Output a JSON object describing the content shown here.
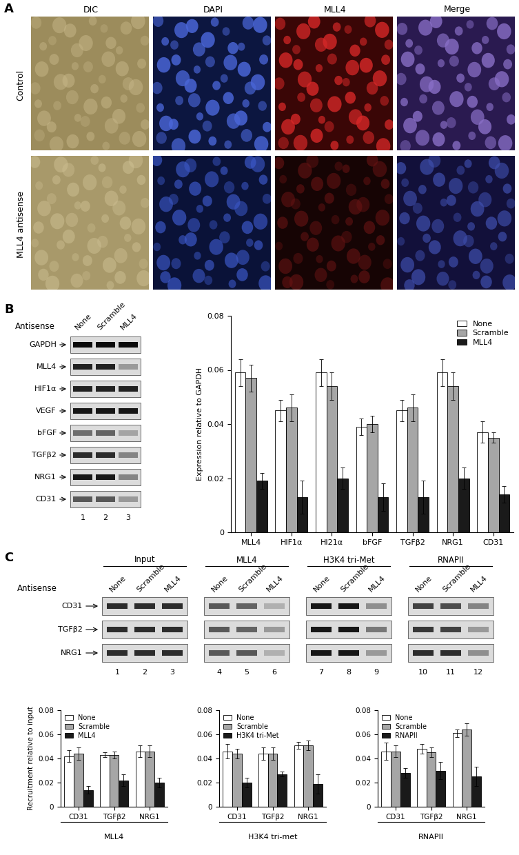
{
  "panel_labels": [
    "A",
    "B",
    "C"
  ],
  "micrographs": {
    "columns": [
      "DIC",
      "DAPI",
      "MLL4",
      "Merge"
    ],
    "rows": [
      "Control",
      "MLL4 antisense"
    ]
  },
  "gels": [
    {
      "header": "Antisense",
      "lanes": [
        "None",
        "Scramble",
        "MLL4"
      ],
      "lane_numbers": [
        1,
        2,
        3
      ],
      "rows": [
        {
          "name": "GAPDH",
          "intensity": [
            0.95,
            0.95,
            0.95
          ]
        },
        {
          "name": "MLL4",
          "intensity": [
            0.85,
            0.85,
            0.3
          ]
        },
        {
          "name": "HIF1α",
          "intensity": [
            0.85,
            0.85,
            0.85
          ]
        },
        {
          "name": "VEGF",
          "intensity": [
            0.9,
            0.9,
            0.9
          ]
        },
        {
          "name": "bFGF",
          "intensity": [
            0.5,
            0.55,
            0.25
          ]
        },
        {
          "name": "TGFβ2",
          "intensity": [
            0.8,
            0.8,
            0.4
          ]
        },
        {
          "name": "NRG1",
          "intensity": [
            0.9,
            0.9,
            0.4
          ]
        },
        {
          "name": "CD31",
          "intensity": [
            0.6,
            0.6,
            0.3
          ]
        }
      ]
    },
    {
      "header": "Antisense",
      "groups": [
        {
          "name": "Input",
          "lanes": [
            "None",
            "Scramble",
            "MLL4"
          ]
        },
        {
          "name": "MLL4",
          "lanes": [
            "None",
            "Scramble",
            "MLL4"
          ]
        },
        {
          "name": "H3K4 tri-Met",
          "lanes": [
            "None",
            "Scramble",
            "MLL4"
          ]
        },
        {
          "name": "RNAPII",
          "lanes": [
            "None",
            "Scramble",
            "MLL4"
          ]
        }
      ],
      "lane_numbers": [
        1,
        2,
        3,
        4,
        5,
        6,
        7,
        8,
        9,
        10,
        11,
        12
      ],
      "rows": [
        {
          "name": "CD31",
          "intensity": [
            0.8,
            0.8,
            0.8,
            0.6,
            0.55,
            0.2,
            0.9,
            0.9,
            0.35,
            0.7,
            0.65,
            0.4
          ]
        },
        {
          "name": "TGFβ2",
          "intensity": [
            0.8,
            0.8,
            0.8,
            0.6,
            0.55,
            0.3,
            0.9,
            0.9,
            0.45,
            0.75,
            0.7,
            0.3
          ]
        },
        {
          "name": "NRG1",
          "intensity": [
            0.8,
            0.8,
            0.8,
            0.6,
            0.6,
            0.2,
            0.9,
            0.9,
            0.3,
            0.8,
            0.8,
            0.35
          ]
        }
      ]
    }
  ],
  "chart_data": [
    {
      "type": "bar",
      "ylabel": "Expression relative to GAPDH",
      "categories": [
        "MLL4",
        "HIF1α",
        "HI21α",
        "bFGF",
        "TGFβ2",
        "NRG1",
        "CD31"
      ],
      "series": [
        {
          "name": "None",
          "color": "#ffffff",
          "values": [
            0.059,
            0.045,
            0.059,
            0.039,
            0.045,
            0.059,
            0.037
          ],
          "errors": [
            0.005,
            0.004,
            0.005,
            0.003,
            0.004,
            0.005,
            0.004
          ]
        },
        {
          "name": "Scramble",
          "color": "#a6a6a6",
          "values": [
            0.057,
            0.046,
            0.054,
            0.04,
            0.046,
            0.054,
            0.035
          ],
          "errors": [
            0.005,
            0.005,
            0.005,
            0.003,
            0.005,
            0.005,
            0.002
          ]
        },
        {
          "name": "MLL4",
          "color": "#1a1a1a",
          "values": [
            0.019,
            0.013,
            0.02,
            0.013,
            0.013,
            0.02,
            0.014
          ],
          "errors": [
            0.003,
            0.006,
            0.004,
            0.005,
            0.006,
            0.004,
            0.003
          ]
        }
      ],
      "ylim": [
        0,
        0.08
      ],
      "yticks": [
        0,
        0.02,
        0.04,
        0.06,
        0.08
      ],
      "legend": "upper right",
      "grid": false
    },
    {
      "type": "bar",
      "ylabel": "Recruitment relative to input",
      "xlabel": "MLL4",
      "categories": [
        "CD31",
        "TGFβ2",
        "NRG1"
      ],
      "series": [
        {
          "name": "None",
          "color": "#ffffff",
          "values": [
            0.042,
            0.043,
            0.046
          ],
          "errors": [
            0.005,
            0.002,
            0.005
          ]
        },
        {
          "name": "Scramble",
          "color": "#a6a6a6",
          "values": [
            0.044,
            0.043,
            0.046
          ],
          "errors": [
            0.005,
            0.003,
            0.005
          ]
        },
        {
          "name": "MLL4",
          "color": "#1a1a1a",
          "values": [
            0.014,
            0.022,
            0.02
          ],
          "errors": [
            0.003,
            0.005,
            0.004
          ]
        }
      ],
      "ylim": [
        0,
        0.08
      ],
      "yticks": [
        0,
        0.02,
        0.04,
        0.06,
        0.08
      ],
      "legend": "upper left",
      "grid": false
    },
    {
      "type": "bar",
      "xlabel": "H3K4 tri-met",
      "categories": [
        "CD31",
        "TGFβ2",
        "NRG1"
      ],
      "series": [
        {
          "name": "None",
          "color": "#ffffff",
          "values": [
            0.046,
            0.044,
            0.051
          ],
          "errors": [
            0.006,
            0.005,
            0.003
          ]
        },
        {
          "name": "Scramble",
          "color": "#a6a6a6",
          "values": [
            0.044,
            0.044,
            0.051
          ],
          "errors": [
            0.004,
            0.005,
            0.004
          ]
        },
        {
          "name": "H3K4 tri-Met",
          "color": "#1a1a1a",
          "values": [
            0.02,
            0.027,
            0.019
          ],
          "errors": [
            0.004,
            0.002,
            0.008
          ]
        }
      ],
      "ylim": [
        0,
        0.08
      ],
      "yticks": [
        0,
        0.02,
        0.04,
        0.06,
        0.08
      ],
      "legend": "upper left",
      "grid": false
    },
    {
      "type": "bar",
      "xlabel": "RNAPII",
      "categories": [
        "CD31",
        "TGFβ2",
        "NRG1"
      ],
      "series": [
        {
          "name": "None",
          "color": "#ffffff",
          "values": [
            0.046,
            0.048,
            0.061
          ],
          "errors": [
            0.007,
            0.004,
            0.003
          ]
        },
        {
          "name": "Scramble",
          "color": "#a6a6a6",
          "values": [
            0.046,
            0.045,
            0.064
          ],
          "errors": [
            0.005,
            0.004,
            0.005
          ]
        },
        {
          "name": "RNAPII",
          "color": "#1a1a1a",
          "values": [
            0.028,
            0.03,
            0.025
          ],
          "errors": [
            0.004,
            0.007,
            0.008
          ]
        }
      ],
      "ylim": [
        0,
        0.08
      ],
      "yticks": [
        0,
        0.02,
        0.04,
        0.06,
        0.08
      ],
      "legend": "upper left",
      "grid": false
    }
  ]
}
